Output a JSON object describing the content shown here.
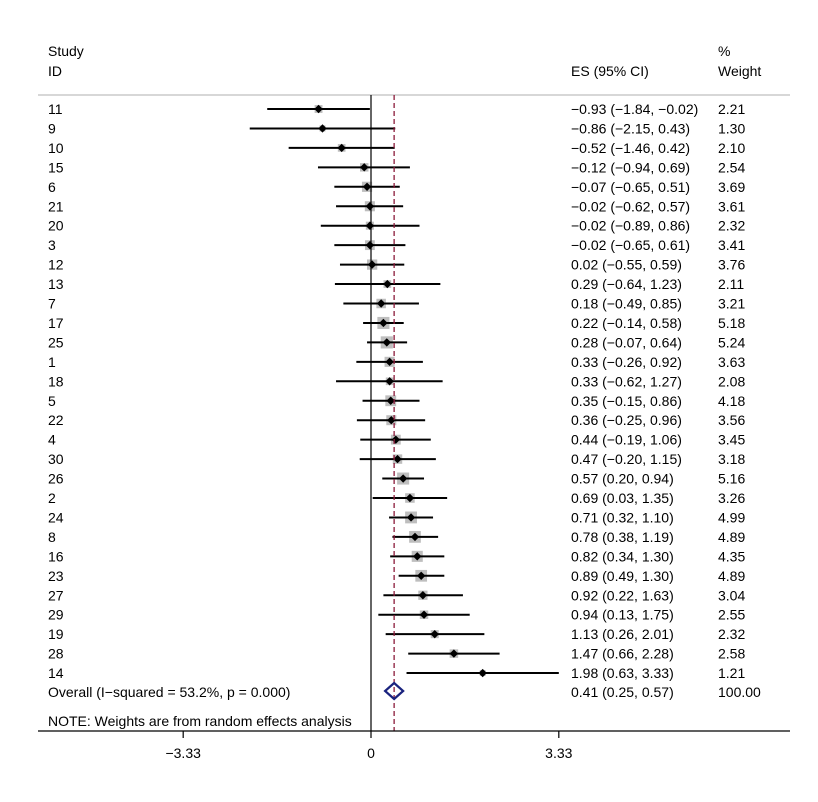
{
  "chart_data": {
    "type": "forest",
    "header": {
      "study_line1": "Study",
      "study_line2": "ID",
      "es_label": "ES (95% CI)",
      "weight_line1": "%",
      "weight_line2": "Weight"
    },
    "studies": [
      {
        "id": "11",
        "es": -0.93,
        "lo": -1.84,
        "hi": -0.02,
        "weight": 2.21,
        "es_text": "−0.93 (−1.84, −0.02)",
        "weight_text": "2.21"
      },
      {
        "id": "9",
        "es": -0.86,
        "lo": -2.15,
        "hi": 0.43,
        "weight": 1.3,
        "es_text": "−0.86 (−2.15, 0.43)",
        "weight_text": "1.30"
      },
      {
        "id": "10",
        "es": -0.52,
        "lo": -1.46,
        "hi": 0.42,
        "weight": 2.1,
        "es_text": "−0.52 (−1.46, 0.42)",
        "weight_text": "2.10"
      },
      {
        "id": "15",
        "es": -0.12,
        "lo": -0.94,
        "hi": 0.69,
        "weight": 2.54,
        "es_text": "−0.12 (−0.94, 0.69)",
        "weight_text": "2.54"
      },
      {
        "id": "6",
        "es": -0.07,
        "lo": -0.65,
        "hi": 0.51,
        "weight": 3.69,
        "es_text": "−0.07 (−0.65, 0.51)",
        "weight_text": "3.69"
      },
      {
        "id": "21",
        "es": -0.02,
        "lo": -0.62,
        "hi": 0.57,
        "weight": 3.61,
        "es_text": "−0.02 (−0.62, 0.57)",
        "weight_text": "3.61"
      },
      {
        "id": "20",
        "es": -0.02,
        "lo": -0.89,
        "hi": 0.86,
        "weight": 2.32,
        "es_text": "−0.02 (−0.89, 0.86)",
        "weight_text": "2.32"
      },
      {
        "id": "3",
        "es": -0.02,
        "lo": -0.65,
        "hi": 0.61,
        "weight": 3.41,
        "es_text": "−0.02 (−0.65, 0.61)",
        "weight_text": "3.41"
      },
      {
        "id": "12",
        "es": 0.02,
        "lo": -0.55,
        "hi": 0.59,
        "weight": 3.76,
        "es_text": "0.02 (−0.55, 0.59)",
        "weight_text": "3.76"
      },
      {
        "id": "13",
        "es": 0.29,
        "lo": -0.64,
        "hi": 1.23,
        "weight": 2.11,
        "es_text": "0.29 (−0.64, 1.23)",
        "weight_text": "2.11"
      },
      {
        "id": "7",
        "es": 0.18,
        "lo": -0.49,
        "hi": 0.85,
        "weight": 3.21,
        "es_text": "0.18 (−0.49, 0.85)",
        "weight_text": "3.21"
      },
      {
        "id": "17",
        "es": 0.22,
        "lo": -0.14,
        "hi": 0.58,
        "weight": 5.18,
        "es_text": "0.22 (−0.14, 0.58)",
        "weight_text": "5.18"
      },
      {
        "id": "25",
        "es": 0.28,
        "lo": -0.07,
        "hi": 0.64,
        "weight": 5.24,
        "es_text": "0.28 (−0.07, 0.64)",
        "weight_text": "5.24"
      },
      {
        "id": "1",
        "es": 0.33,
        "lo": -0.26,
        "hi": 0.92,
        "weight": 3.63,
        "es_text": "0.33 (−0.26, 0.92)",
        "weight_text": "3.63"
      },
      {
        "id": "18",
        "es": 0.33,
        "lo": -0.62,
        "hi": 1.27,
        "weight": 2.08,
        "es_text": "0.33 (−0.62, 1.27)",
        "weight_text": "2.08"
      },
      {
        "id": "5",
        "es": 0.35,
        "lo": -0.15,
        "hi": 0.86,
        "weight": 4.18,
        "es_text": "0.35 (−0.15, 0.86)",
        "weight_text": "4.18"
      },
      {
        "id": "22",
        "es": 0.36,
        "lo": -0.25,
        "hi": 0.96,
        "weight": 3.56,
        "es_text": "0.36 (−0.25, 0.96)",
        "weight_text": "3.56"
      },
      {
        "id": "4",
        "es": 0.44,
        "lo": -0.19,
        "hi": 1.06,
        "weight": 3.45,
        "es_text": "0.44 (−0.19, 1.06)",
        "weight_text": "3.45"
      },
      {
        "id": "30",
        "es": 0.47,
        "lo": -0.2,
        "hi": 1.15,
        "weight": 3.18,
        "es_text": "0.47 (−0.20, 1.15)",
        "weight_text": "3.18"
      },
      {
        "id": "26",
        "es": 0.57,
        "lo": 0.2,
        "hi": 0.94,
        "weight": 5.16,
        "es_text": "0.57 (0.20, 0.94)",
        "weight_text": "5.16"
      },
      {
        "id": "2",
        "es": 0.69,
        "lo": 0.03,
        "hi": 1.35,
        "weight": 3.26,
        "es_text": "0.69 (0.03, 1.35)",
        "weight_text": "3.26"
      },
      {
        "id": "24",
        "es": 0.71,
        "lo": 0.32,
        "hi": 1.1,
        "weight": 4.99,
        "es_text": "0.71 (0.32, 1.10)",
        "weight_text": "4.99"
      },
      {
        "id": "8",
        "es": 0.78,
        "lo": 0.38,
        "hi": 1.19,
        "weight": 4.89,
        "es_text": "0.78 (0.38, 1.19)",
        "weight_text": "4.89"
      },
      {
        "id": "16",
        "es": 0.82,
        "lo": 0.34,
        "hi": 1.3,
        "weight": 4.35,
        "es_text": "0.82 (0.34, 1.30)",
        "weight_text": "4.35"
      },
      {
        "id": "23",
        "es": 0.89,
        "lo": 0.49,
        "hi": 1.3,
        "weight": 4.89,
        "es_text": "0.89 (0.49, 1.30)",
        "weight_text": "4.89"
      },
      {
        "id": "27",
        "es": 0.92,
        "lo": 0.22,
        "hi": 1.63,
        "weight": 3.04,
        "es_text": "0.92 (0.22, 1.63)",
        "weight_text": "3.04"
      },
      {
        "id": "29",
        "es": 0.94,
        "lo": 0.13,
        "hi": 1.75,
        "weight": 2.55,
        "es_text": "0.94 (0.13, 1.75)",
        "weight_text": "2.55"
      },
      {
        "id": "19",
        "es": 1.13,
        "lo": 0.26,
        "hi": 2.01,
        "weight": 2.32,
        "es_text": "1.13 (0.26, 2.01)",
        "weight_text": "2.32"
      },
      {
        "id": "28",
        "es": 1.47,
        "lo": 0.66,
        "hi": 2.28,
        "weight": 2.58,
        "es_text": "1.47 (0.66, 2.28)",
        "weight_text": "2.58"
      },
      {
        "id": "14",
        "es": 1.98,
        "lo": 0.63,
        "hi": 3.33,
        "weight": 1.21,
        "es_text": "1.98 (0.63, 3.33)",
        "weight_text": "1.21"
      }
    ],
    "overall": {
      "label": "Overall  (I−squared = 53.2%, p = 0.000)",
      "es": 0.41,
      "lo": 0.25,
      "hi": 0.57,
      "es_text": "0.41 (0.25, 0.57)",
      "weight_text": "100.00"
    },
    "note": "NOTE: Weights are from random effects analysis",
    "x_ticks": [
      {
        "value": -3.33,
        "label": "−3.33"
      },
      {
        "value": 0,
        "label": "0"
      },
      {
        "value": 3.33,
        "label": "3.33"
      }
    ],
    "null_line": 0,
    "colors": {
      "box": "#bebebe",
      "point": "#000000",
      "ci": "#000000",
      "overall_diamond": "#1a237e",
      "overall_line": "#8b1a3a",
      "axis": "#000000",
      "divider": "#bfbfbf"
    }
  }
}
